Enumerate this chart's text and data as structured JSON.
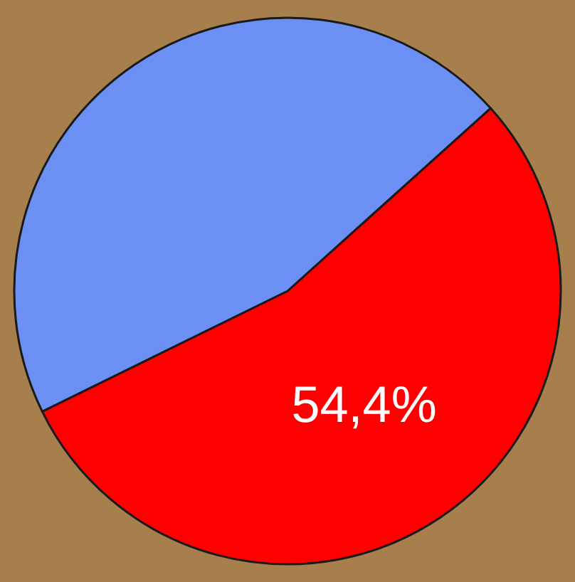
{
  "chart_data": {
    "type": "pie",
    "categories": [
      null,
      null
    ],
    "values": [
      54.4,
      45.6
    ],
    "colors": [
      "#ff0000",
      "#6b8ff2"
    ],
    "value_labels": [
      "54,4%",
      null
    ],
    "legend": false
  }
}
